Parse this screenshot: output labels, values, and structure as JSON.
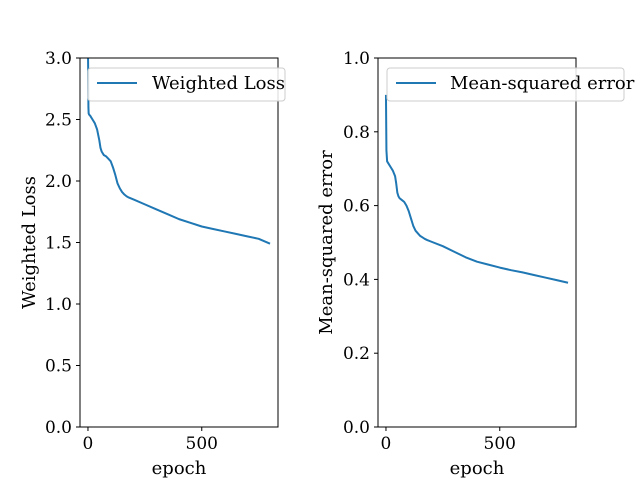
{
  "line_color": "#1f77b4",
  "chart_data": [
    {
      "type": "line",
      "title": "",
      "xlabel": "epoch",
      "ylabel": "Weighted Loss",
      "xlim": [
        -35,
        835
      ],
      "ylim": [
        0,
        3.0
      ],
      "xticks": [
        0,
        500
      ],
      "xtick_labels": [
        "0",
        "500"
      ],
      "yticks": [
        0.0,
        0.5,
        1.0,
        1.5,
        2.0,
        2.5,
        3.0
      ],
      "ytick_labels": [
        "0.0",
        "0.5",
        "1.0",
        "1.5",
        "2.0",
        "2.5",
        "3.0"
      ],
      "legend": {
        "placement": "top-right"
      },
      "series": [
        {
          "name": "Weighted Loss",
          "x": [
            0,
            1,
            2,
            3,
            5,
            10,
            20,
            30,
            40,
            50,
            55,
            60,
            70,
            80,
            90,
            100,
            110,
            120,
            130,
            140,
            150,
            160,
            170,
            180,
            200,
            250,
            300,
            350,
            400,
            450,
            500,
            550,
            600,
            650,
            700,
            750,
            800
          ],
          "y": [
            3.05,
            2.9,
            2.6,
            2.55,
            2.54,
            2.53,
            2.5,
            2.47,
            2.42,
            2.33,
            2.27,
            2.24,
            2.21,
            2.2,
            2.18,
            2.16,
            2.11,
            2.05,
            1.98,
            1.94,
            1.91,
            1.89,
            1.875,
            1.865,
            1.85,
            1.81,
            1.77,
            1.73,
            1.69,
            1.66,
            1.63,
            1.61,
            1.59,
            1.57,
            1.55,
            1.53,
            1.49
          ]
        }
      ]
    },
    {
      "type": "line",
      "title": "",
      "xlabel": "epoch",
      "ylabel": "Mean-squared error",
      "xlim": [
        -35,
        835
      ],
      "ylim": [
        0,
        1.0
      ],
      "xticks": [
        0,
        500
      ],
      "xtick_labels": [
        "0",
        "500"
      ],
      "yticks": [
        0.0,
        0.2,
        0.4,
        0.6,
        0.8,
        1.0
      ],
      "ytick_labels": [
        "0.0",
        "0.2",
        "0.4",
        "0.6",
        "0.8",
        "1.0"
      ],
      "legend": {
        "placement": "top-right"
      },
      "series": [
        {
          "name": "Mean-squared error",
          "x": [
            0,
            2,
            5,
            10,
            20,
            30,
            40,
            45,
            50,
            55,
            60,
            70,
            80,
            90,
            100,
            110,
            120,
            130,
            140,
            150,
            160,
            170,
            180,
            200,
            250,
            300,
            350,
            400,
            450,
            500,
            550,
            600,
            650,
            700,
            750,
            800
          ],
          "y": [
            0.9,
            0.75,
            0.72,
            0.715,
            0.705,
            0.695,
            0.68,
            0.66,
            0.635,
            0.625,
            0.62,
            0.615,
            0.61,
            0.6,
            0.585,
            0.565,
            0.545,
            0.532,
            0.525,
            0.518,
            0.514,
            0.51,
            0.507,
            0.502,
            0.49,
            0.475,
            0.46,
            0.448,
            0.44,
            0.432,
            0.425,
            0.419,
            0.412,
            0.405,
            0.398,
            0.391
          ]
        }
      ]
    }
  ]
}
